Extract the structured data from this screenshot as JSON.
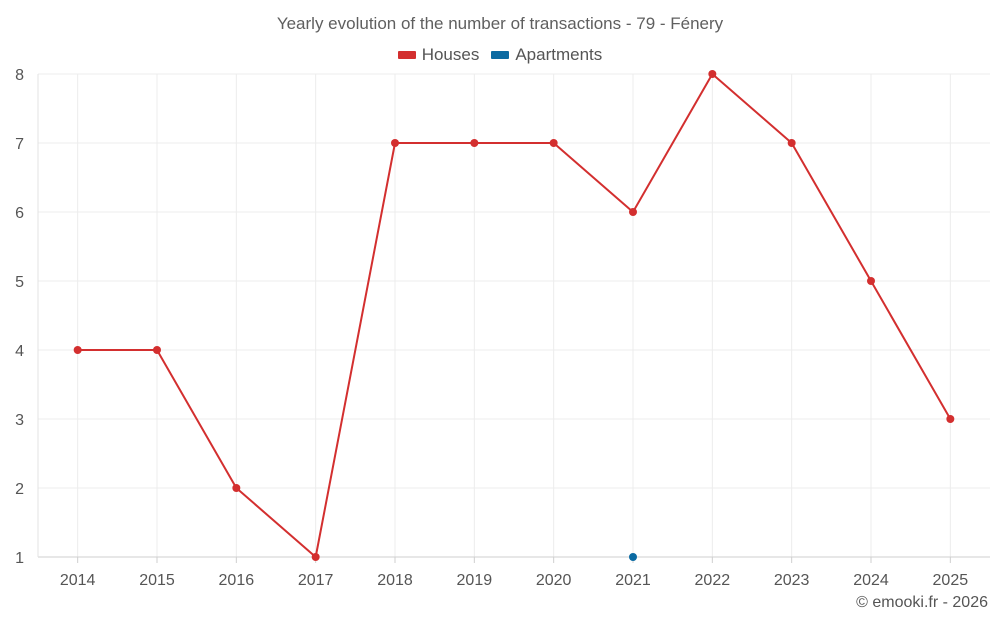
{
  "chart_data": {
    "type": "line",
    "title": "Yearly evolution of the number of transactions - 79 - Fénery",
    "xlabel": "",
    "ylabel": "",
    "categories": [
      "2014",
      "2015",
      "2016",
      "2017",
      "2018",
      "2019",
      "2020",
      "2021",
      "2022",
      "2023",
      "2024",
      "2025"
    ],
    "ylim": [
      1,
      8
    ],
    "yticks": [
      1,
      2,
      3,
      4,
      5,
      6,
      7,
      8
    ],
    "grid": true,
    "legend_position": "top-center",
    "series": [
      {
        "name": "Houses",
        "color": "#d32f2f",
        "values": [
          4,
          4,
          2,
          1,
          7,
          7,
          7,
          6,
          8,
          7,
          5,
          3
        ]
      },
      {
        "name": "Apartments",
        "color": "#0b6aa2",
        "values": [
          null,
          null,
          null,
          null,
          null,
          null,
          null,
          1,
          null,
          null,
          null,
          null
        ]
      }
    ]
  },
  "credit": "© emooki.fr - 2026"
}
